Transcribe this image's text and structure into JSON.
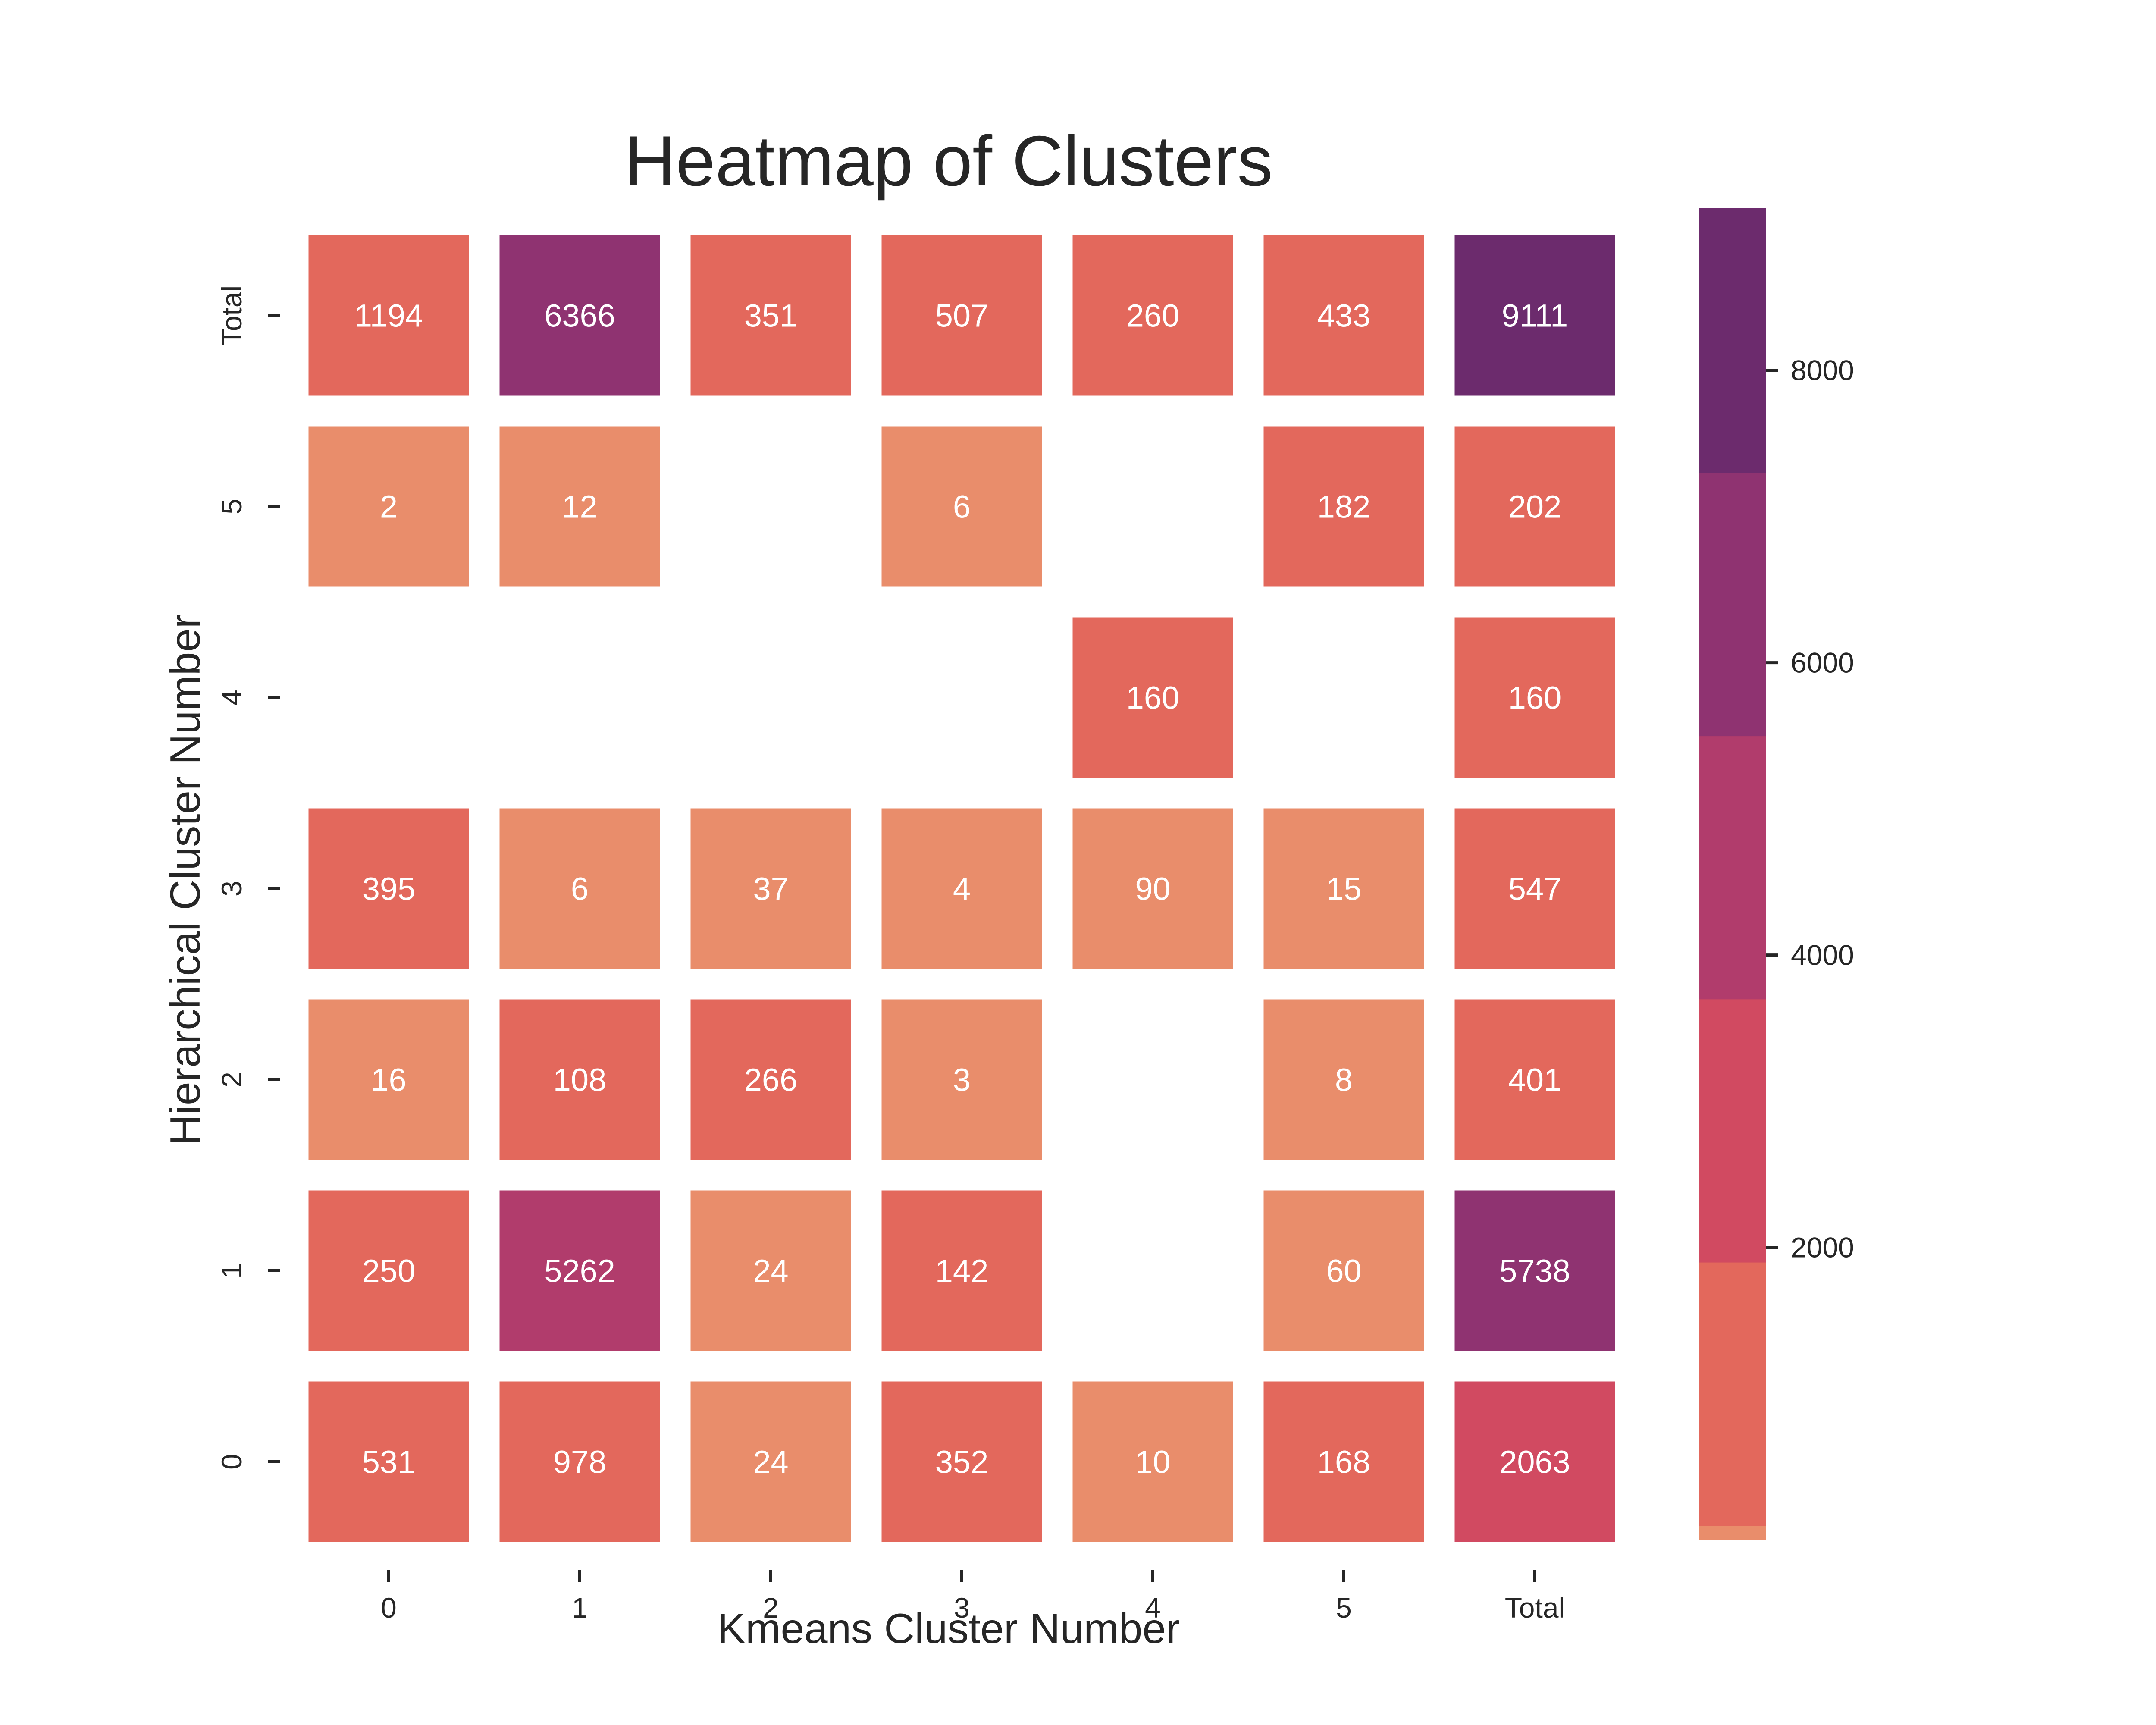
{
  "chart_data": {
    "type": "heatmap",
    "title": "Heatmap of Clusters",
    "xlabel": "Kmeans Cluster Number",
    "ylabel": "Hierarchical Cluster Number",
    "x_categories": [
      "0",
      "1",
      "2",
      "3",
      "4",
      "5",
      "Total"
    ],
    "y_categories_top_to_bottom": [
      "Total",
      "5",
      "4",
      "3",
      "2",
      "1",
      "0"
    ],
    "values": [
      [
        1194,
        6366,
        351,
        507,
        260,
        433,
        9111
      ],
      [
        2,
        12,
        null,
        6,
        null,
        182,
        202
      ],
      [
        null,
        null,
        null,
        null,
        160,
        null,
        160
      ],
      [
        395,
        6,
        37,
        4,
        90,
        15,
        547
      ],
      [
        16,
        108,
        266,
        3,
        null,
        8,
        401
      ],
      [
        250,
        5262,
        24,
        142,
        null,
        60,
        5738
      ],
      [
        531,
        978,
        24,
        352,
        10,
        168,
        2063
      ]
    ],
    "colorbar": {
      "ticks": [
        2000,
        4000,
        6000,
        8000
      ],
      "range": [
        2,
        9111
      ],
      "bands": [
        {
          "from": 0,
          "to": 99,
          "color": "#E98D6B"
        },
        {
          "from": 99,
          "to": 1900,
          "color": "#E3685C"
        },
        {
          "from": 1900,
          "to": 3700,
          "color": "#D14A61"
        },
        {
          "from": 3700,
          "to": 5500,
          "color": "#B13C6C"
        },
        {
          "from": 5500,
          "to": 7300,
          "color": "#8F3371"
        },
        {
          "from": 7300,
          "to": 9200,
          "color": "#6C2B6D"
        }
      ]
    },
    "grid": false,
    "legend": "colorbar-right"
  }
}
